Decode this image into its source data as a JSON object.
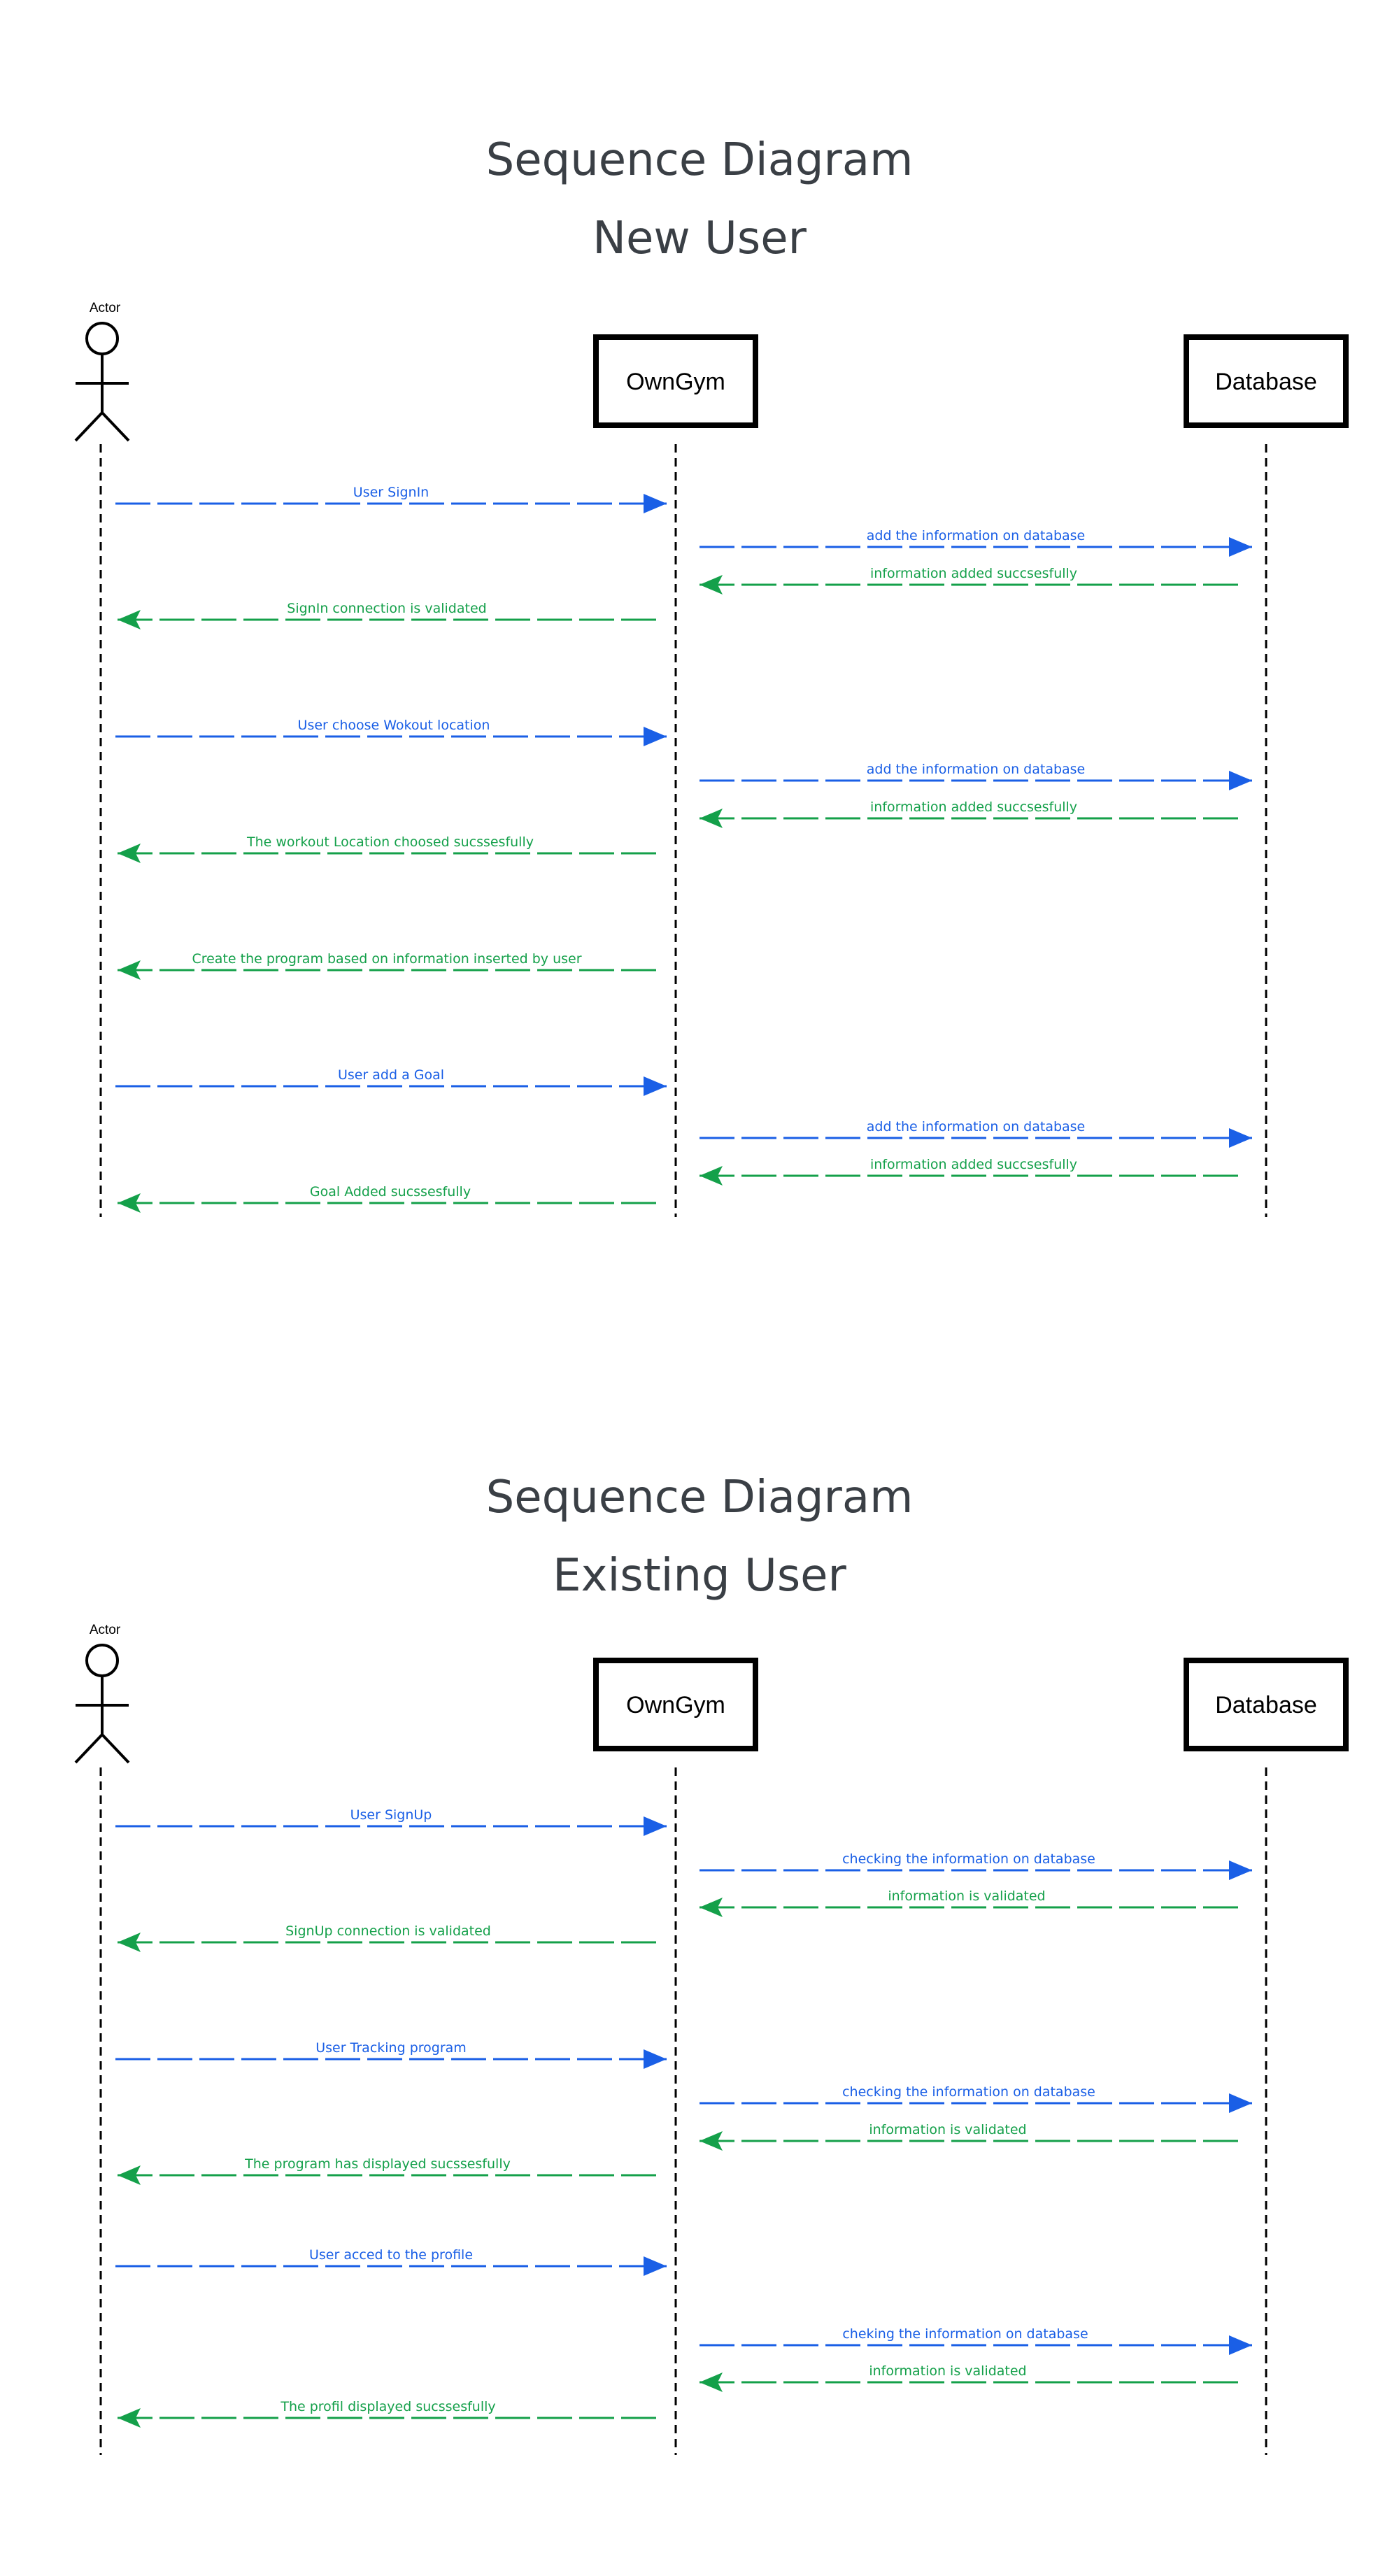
{
  "colors": {
    "request": "#1a5fe6",
    "response": "#14a04a",
    "text": "#3a3f45"
  },
  "diagrams": [
    {
      "title": "Sequence Diagram",
      "subtitle": "New User",
      "actor": "Actor",
      "participants": [
        "OwnGym",
        "Database"
      ],
      "messages": [
        {
          "from": 0,
          "to": 1,
          "text": "User SignIn",
          "type": "request"
        },
        {
          "from": 1,
          "to": 2,
          "text": "add the information on database",
          "type": "request"
        },
        {
          "from": 2,
          "to": 1,
          "text": "information added succsesfully",
          "type": "response"
        },
        {
          "from": 1,
          "to": 0,
          "text": "SignIn connection is validated",
          "type": "response"
        },
        {
          "from": 0,
          "to": 1,
          "text": "User choose Wokout location",
          "type": "request"
        },
        {
          "from": 1,
          "to": 2,
          "text": "add the information on database",
          "type": "request"
        },
        {
          "from": 2,
          "to": 1,
          "text": "information added succsesfully",
          "type": "response"
        },
        {
          "from": 1,
          "to": 0,
          "text": "The workout Location choosed sucssesfully",
          "type": "response"
        },
        {
          "from": 1,
          "to": 0,
          "text": "Create the program based on information inserted by user",
          "type": "response"
        },
        {
          "from": 0,
          "to": 1,
          "text": "User add a Goal",
          "type": "request"
        },
        {
          "from": 1,
          "to": 2,
          "text": "add the information on database",
          "type": "request"
        },
        {
          "from": 2,
          "to": 1,
          "text": "information added succsesfully",
          "type": "response"
        },
        {
          "from": 1,
          "to": 0,
          "text": "Goal Added sucssesfully",
          "type": "response"
        }
      ]
    },
    {
      "title": "Sequence Diagram",
      "subtitle": "Existing User",
      "actor": "Actor",
      "participants": [
        "OwnGym",
        "Database"
      ],
      "messages": [
        {
          "from": 0,
          "to": 1,
          "text": "User SignUp",
          "type": "request"
        },
        {
          "from": 1,
          "to": 2,
          "text": "checking the information on database",
          "type": "request"
        },
        {
          "from": 2,
          "to": 1,
          "text": "information is validated",
          "type": "response"
        },
        {
          "from": 1,
          "to": 0,
          "text": "SignUp connection is validated",
          "type": "response"
        },
        {
          "from": 0,
          "to": 1,
          "text": "User Tracking  program",
          "type": "request"
        },
        {
          "from": 1,
          "to": 2,
          "text": "checking the information on database",
          "type": "request"
        },
        {
          "from": 2,
          "to": 1,
          "text": "information is validated",
          "type": "response"
        },
        {
          "from": 1,
          "to": 0,
          "text": "The program has displayed sucssesfully",
          "type": "response"
        },
        {
          "from": 0,
          "to": 1,
          "text": "User acced to the profile",
          "type": "request"
        },
        {
          "from": 1,
          "to": 2,
          "text": "cheking the information on database",
          "type": "request"
        },
        {
          "from": 2,
          "to": 1,
          "text": "information is validated",
          "type": "response"
        },
        {
          "from": 1,
          "to": 0,
          "text": "The profil displayed sucssesfully",
          "type": "response"
        }
      ]
    }
  ]
}
